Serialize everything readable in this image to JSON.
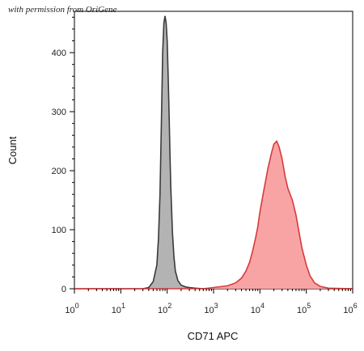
{
  "watermark": "with permission from OriGene",
  "chart_data": {
    "type": "area",
    "xlabel": "CD71 APC",
    "ylabel": "Count",
    "x_scale": "log",
    "xlim": [
      1,
      1000000
    ],
    "ylim": [
      0,
      470
    ],
    "x_ticks": [
      {
        "base": "10",
        "exp": "0"
      },
      {
        "base": "10",
        "exp": "1"
      },
      {
        "base": "10",
        "exp": "2"
      },
      {
        "base": "10",
        "exp": "3"
      },
      {
        "base": "10",
        "exp": "4"
      },
      {
        "base": "10",
        "exp": "5"
      },
      {
        "base": "10",
        "exp": "6"
      }
    ],
    "y_ticks": [
      "0",
      "100",
      "200",
      "300",
      "400"
    ],
    "grid": false,
    "series": [
      {
        "fill": "#b3b3b3",
        "stroke": "#3a3a3a",
        "x": [
          1,
          30,
          40,
          50,
          60,
          65,
          70,
          75,
          80,
          85,
          90,
          95,
          100,
          105,
          110,
          115,
          120,
          130,
          140,
          150,
          170,
          200,
          250,
          300,
          400,
          600,
          1000,
          3000,
          1000000
        ],
        "y": [
          0,
          0,
          2,
          12,
          40,
          85,
          160,
          280,
          400,
          450,
          462,
          450,
          420,
          360,
          300,
          230,
          170,
          95,
          55,
          30,
          14,
          6,
          3,
          2,
          1,
          0,
          0,
          0,
          0
        ]
      },
      {
        "fill": "#f9a4a4",
        "stroke": "#d83a3a",
        "x": [
          1,
          600,
          1000,
          2000,
          3000,
          4000,
          5000,
          6000,
          7000,
          8000,
          9000,
          10000,
          12000,
          15000,
          18000,
          20000,
          23000,
          26000,
          30000,
          35000,
          40000,
          50000,
          60000,
          70000,
          80000,
          100000,
          120000,
          150000,
          200000,
          300000,
          1000000
        ],
        "y": [
          0,
          0,
          2,
          5,
          10,
          18,
          30,
          45,
          65,
          85,
          105,
          130,
          165,
          205,
          232,
          245,
          250,
          240,
          220,
          190,
          170,
          150,
          125,
          95,
          70,
          40,
          22,
          10,
          4,
          1,
          0
        ]
      }
    ]
  }
}
